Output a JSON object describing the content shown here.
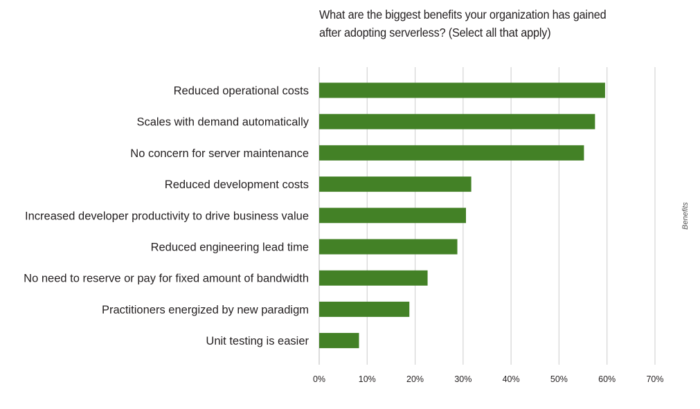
{
  "chart_data": {
    "type": "bar",
    "orientation": "horizontal",
    "title": "What are the biggest benefits your organization has gained after adopting serverless? (Select all that apply)",
    "ylabel": "Benefits",
    "xlabel": "",
    "categories": [
      "Reduced operational costs",
      "Scales with demand automatically",
      "No concern for server maintenance",
      "Reduced development costs",
      "Increased developer productivity to drive business value",
      "Reduced engineering lead time",
      "No need to reserve or pay for fixed amount of bandwidth",
      "Practitioners energized by new paradigm",
      "Unit testing is easier"
    ],
    "values": [
      59.6,
      57.5,
      55.2,
      31.7,
      30.6,
      28.8,
      22.6,
      18.8,
      8.3
    ],
    "xlim": [
      0,
      70
    ],
    "x_ticks": [
      "0%",
      "10%",
      "20%",
      "30%",
      "40%",
      "50%",
      "60%",
      "70%"
    ],
    "grid": true,
    "bar_color": "#438126",
    "grid_color": "#d4d4d4"
  }
}
